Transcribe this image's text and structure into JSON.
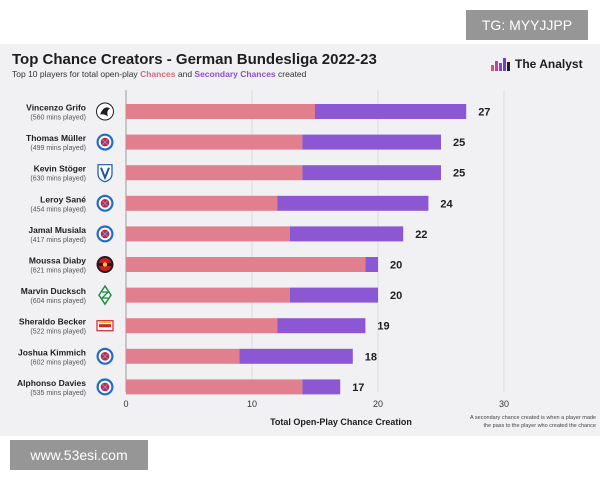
{
  "watermarks": {
    "top": "TG: MYYJJPP",
    "bottom": "www.53esi.com"
  },
  "header": {
    "title": "Top Chance Creators - German Bundesliga 2022-23",
    "subtitle_pre": "Top 10 players for total open-play ",
    "subtitle_c1": "Chances",
    "subtitle_mid": " and ",
    "subtitle_c2": "Secondary Chances",
    "subtitle_post": " created",
    "brand": "The Analyst"
  },
  "colors": {
    "chances": "#e27f8e",
    "secondary": "#8b57d3",
    "grid": "#d8d8de",
    "axis": "#9a9aa2"
  },
  "chart_data": {
    "type": "bar",
    "orientation": "horizontal",
    "stacked": true,
    "title": "Top Chance Creators - German Bundesliga 2022-23",
    "subtitle": "Top 10 players for total open-play Chances and Secondary Chances created",
    "xlabel": "Total Open-Play Chance Creation",
    "xlim": [
      0,
      30
    ],
    "xticks": [
      0,
      10,
      20,
      30
    ],
    "grid": true,
    "players": [
      {
        "name": "Vincenzo Grifo",
        "mins": "(560 mins played)",
        "club_icon": "freiburg-crest-icon",
        "chances": 15,
        "secondary": 12,
        "total": 27
      },
      {
        "name": "Thomas Müller",
        "mins": "(499 mins played)",
        "club_icon": "bayern-crest-icon",
        "chances": 14,
        "secondary": 11,
        "total": 25
      },
      {
        "name": "Kevin Stöger",
        "mins": "(630 mins played)",
        "club_icon": "bochum-crest-icon",
        "chances": 14,
        "secondary": 11,
        "total": 25
      },
      {
        "name": "Leroy Sané",
        "mins": "(454 mins played)",
        "club_icon": "bayern-crest-icon",
        "chances": 12,
        "secondary": 12,
        "total": 24
      },
      {
        "name": "Jamal Musiala",
        "mins": "(417 mins played)",
        "club_icon": "bayern-crest-icon",
        "chances": 13,
        "secondary": 9,
        "total": 22
      },
      {
        "name": "Moussa Diaby",
        "mins": "(621 mins played)",
        "club_icon": "leverkusen-crest-icon",
        "chances": 19,
        "secondary": 1,
        "total": 20
      },
      {
        "name": "Marvin Ducksch",
        "mins": "(604 mins played)",
        "club_icon": "bremen-crest-icon",
        "chances": 13,
        "secondary": 7,
        "total": 20
      },
      {
        "name": "Sheraldo Becker",
        "mins": "(522 mins played)",
        "club_icon": "union-berlin-crest-icon",
        "chances": 12,
        "secondary": 7,
        "total": 19
      },
      {
        "name": "Joshua Kimmich",
        "mins": "(602 mins played)",
        "club_icon": "bayern-crest-icon",
        "chances": 9,
        "secondary": 9,
        "total": 18
      },
      {
        "name": "Alphonso Davies",
        "mins": "(535 mins played)",
        "club_icon": "bayern-crest-icon",
        "chances": 14,
        "secondary": 3,
        "total": 17
      }
    ],
    "note_line1": "A secondary chance created is when a player made",
    "note_line2": "the pass to the player who created the chance"
  }
}
